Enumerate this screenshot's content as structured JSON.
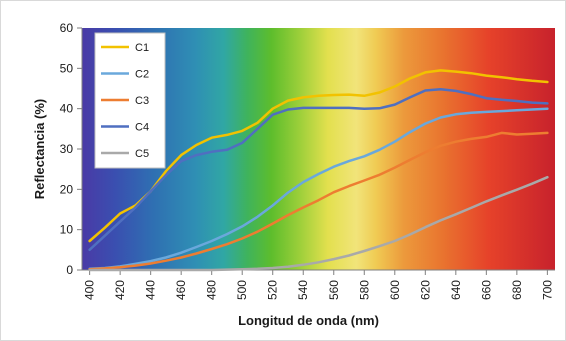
{
  "chart_data": {
    "type": "line",
    "title": "",
    "xlabel": "Longitud de onda (nm)",
    "ylabel": "Reflectancia (%)",
    "xlim": [
      395,
      705
    ],
    "ylim": [
      0,
      60
    ],
    "x_ticks": [
      400,
      420,
      440,
      460,
      480,
      500,
      520,
      540,
      560,
      580,
      600,
      620,
      640,
      660,
      680,
      700
    ],
    "y_ticks": [
      0,
      10,
      20,
      30,
      40,
      50,
      60
    ],
    "grid": false,
    "legend_position": "top-left",
    "background": "visible-spectrum gradient",
    "x": [
      400,
      410,
      420,
      430,
      440,
      450,
      460,
      470,
      480,
      490,
      500,
      510,
      520,
      530,
      540,
      550,
      560,
      570,
      580,
      590,
      600,
      610,
      620,
      630,
      640,
      650,
      660,
      670,
      680,
      690,
      700
    ],
    "series": [
      {
        "name": "C1",
        "color": "#f2c200",
        "values": [
          7.2,
          10.5,
          14,
          16,
          19.5,
          24.5,
          28.5,
          31,
          32.8,
          33.5,
          34.5,
          36.5,
          40,
          42,
          42.8,
          43.2,
          43.4,
          43.5,
          43.2,
          44,
          45.5,
          47.5,
          49,
          49.5,
          49.2,
          48.8,
          48.2,
          47.8,
          47.3,
          46.9,
          46.6
        ]
      },
      {
        "name": "C2",
        "color": "#6aa8dc",
        "values": [
          0.3,
          0.5,
          0.9,
          1.5,
          2.2,
          3.1,
          4.3,
          5.7,
          7.2,
          8.9,
          10.8,
          13.2,
          16,
          19.2,
          21.8,
          23.8,
          25.6,
          27,
          28.2,
          29.8,
          31.8,
          34.2,
          36.3,
          37.8,
          38.6,
          39,
          39.2,
          39.4,
          39.6,
          39.8,
          40
        ]
      },
      {
        "name": "C3",
        "color": "#ed7d31",
        "values": [
          0.2,
          0.4,
          0.7,
          1.1,
          1.6,
          2.3,
          3.1,
          4.1,
          5.2,
          6.4,
          7.8,
          9.5,
          11.5,
          13.6,
          15.5,
          17.3,
          19.3,
          20.8,
          22.2,
          23.6,
          25.4,
          27.3,
          29.2,
          30.8,
          31.8,
          32.5,
          33,
          34,
          33.6,
          33.8,
          34
        ]
      },
      {
        "name": "C4",
        "color": "#4f6fc0",
        "values": [
          5,
          8.5,
          12,
          15.5,
          19.5,
          23.5,
          27,
          28.5,
          29.3,
          29.8,
          31.5,
          35,
          38.5,
          39.8,
          40.2,
          40.2,
          40.2,
          40.2,
          40,
          40.1,
          41,
          42.8,
          44.5,
          44.8,
          44.4,
          43.6,
          42.6,
          42.2,
          41.9,
          41.5,
          41.3
        ]
      },
      {
        "name": "C5",
        "color": "#a9a9a9",
        "values": [
          0,
          0,
          0,
          0,
          0,
          0,
          0,
          0,
          0,
          0.1,
          0.2,
          0.3,
          0.5,
          0.8,
          1.3,
          1.9,
          2.7,
          3.6,
          4.7,
          5.9,
          7.2,
          8.8,
          10.6,
          12.3,
          13.8,
          15.4,
          17,
          18.5,
          19.9,
          21.4,
          23
        ]
      }
    ]
  }
}
